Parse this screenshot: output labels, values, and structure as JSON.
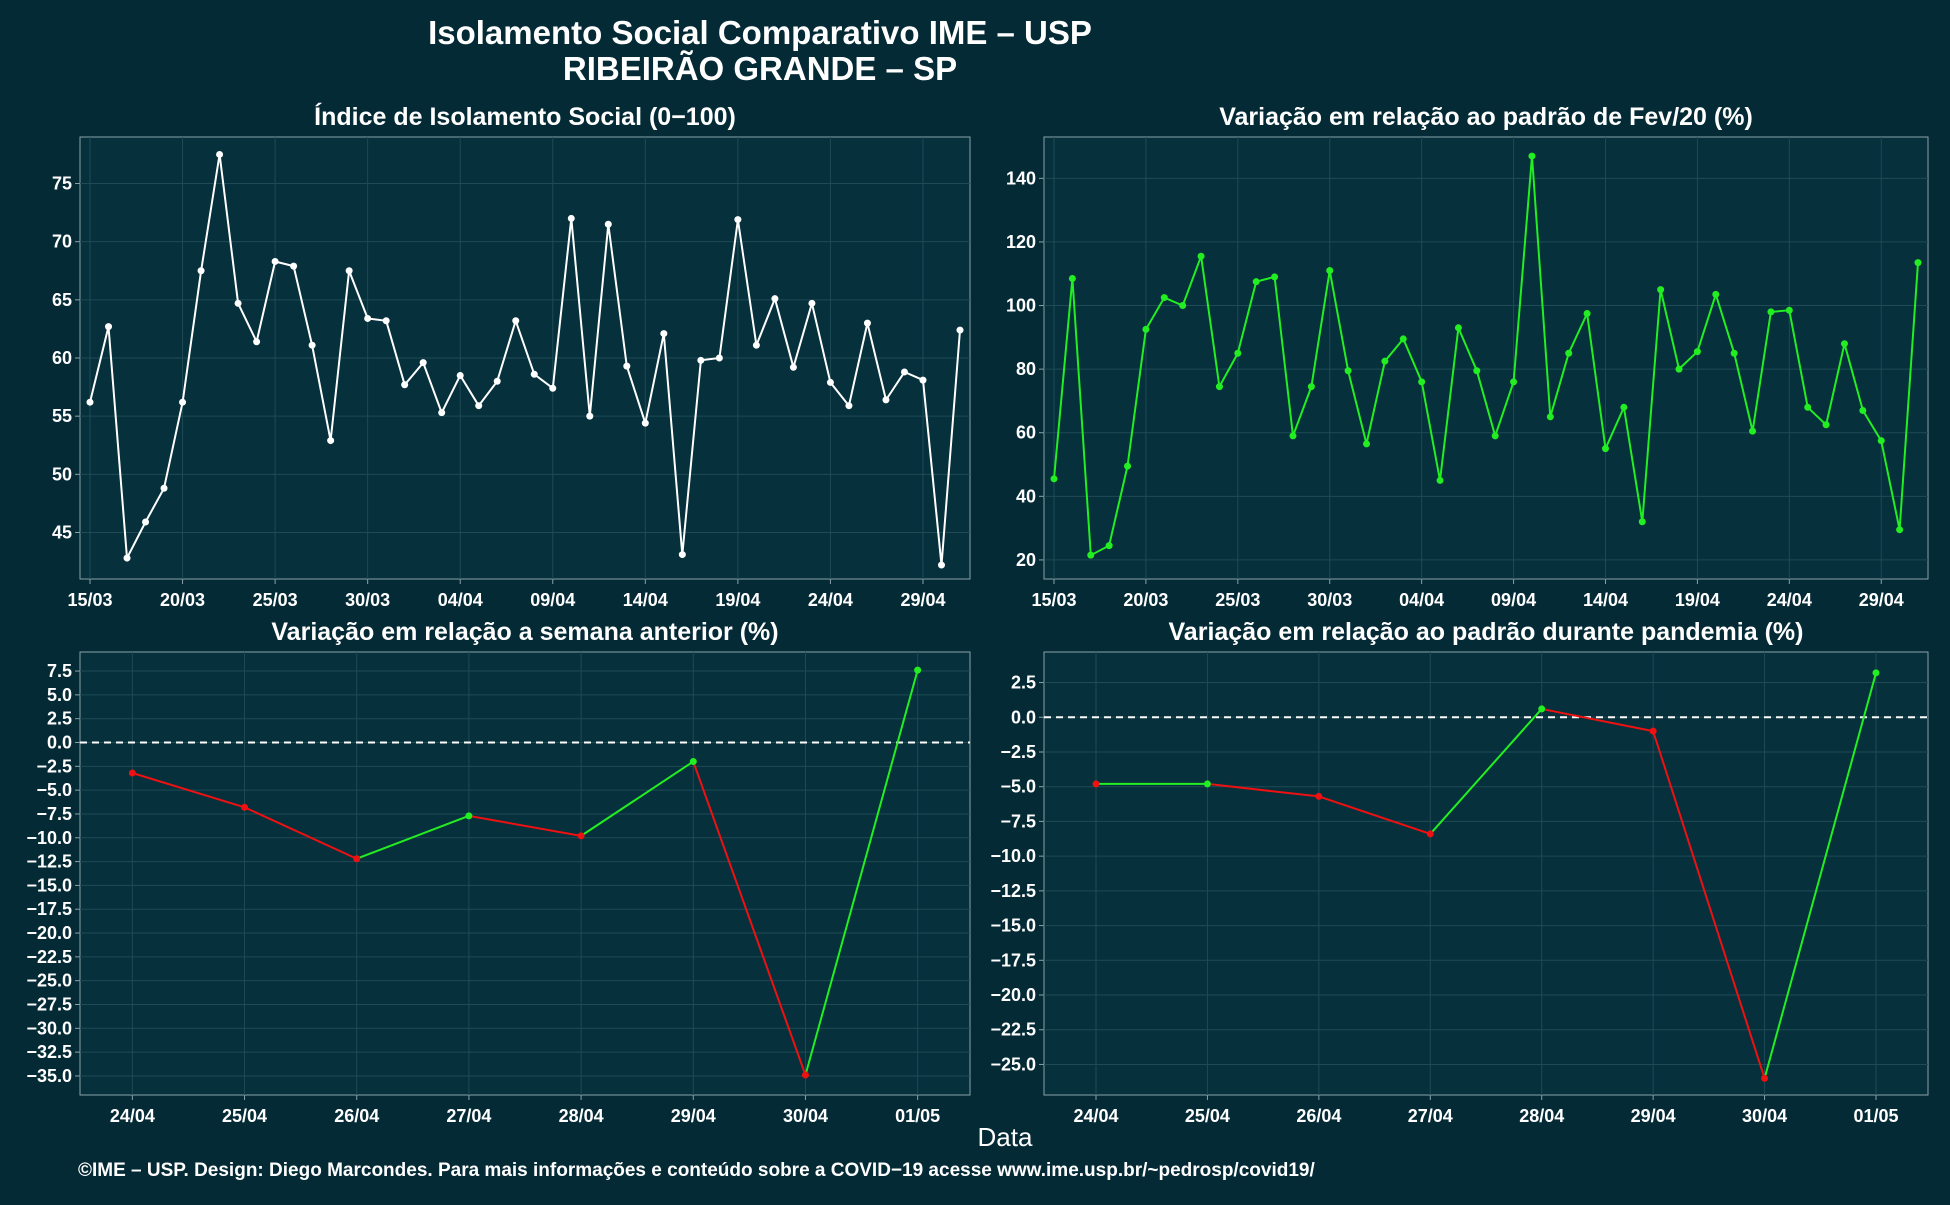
{
  "title_line1": "Isolamento Social Comparativo IME – USP",
  "title_line2": "RIBEIRÃO GRANDE – SP",
  "xaxis_title": "Data",
  "footer": "©IME – USP. Design: Diego Marcondes. Para mais informações e conteúdo sobre a COVID−19 acesse www.ime.usp.br/~pedrosp/covid19/",
  "colors": {
    "background": "#042a36",
    "panel": "#05303c",
    "grid": "#1f4a56",
    "text": "#ffffff",
    "series_white": "#ffffff",
    "series_green": "#22ee22",
    "series_red": "#ee1111",
    "zero_line": "#ffffff"
  },
  "chart_data": [
    {
      "type": "line",
      "title": "Índice de Isolamento Social (0−100)",
      "x_start": "15/03",
      "x_end": "01/05",
      "xtick_labels": [
        "15/03",
        "20/03",
        "25/03",
        "30/03",
        "04/04",
        "09/04",
        "14/04",
        "19/04",
        "24/04",
        "29/04"
      ],
      "yticks": [
        45,
        50,
        55,
        60,
        65,
        70,
        75
      ],
      "ylim": [
        41,
        79
      ],
      "grid": true,
      "series": [
        {
          "color": "#ffffff",
          "values": [
            56.2,
            62.7,
            42.8,
            45.9,
            48.8,
            56.2,
            67.5,
            77.5,
            64.7,
            61.4,
            68.3,
            67.9,
            61.1,
            52.9,
            67.5,
            63.4,
            63.2,
            57.7,
            59.6,
            55.3,
            58.5,
            55.9,
            58.0,
            63.2,
            58.6,
            57.4,
            72.0,
            55.0,
            71.5,
            59.3,
            54.4,
            62.1,
            43.1,
            59.8,
            60.0,
            71.9,
            61.1,
            65.1,
            59.2,
            64.7,
            57.9,
            55.9,
            63.0,
            56.4,
            58.8,
            58.1,
            42.2,
            62.4
          ]
        }
      ]
    },
    {
      "type": "line",
      "title": "Variação em relação ao padrão de Fev/20 (%)",
      "x_start": "15/03",
      "x_end": "01/05",
      "xtick_labels": [
        "15/03",
        "20/03",
        "25/03",
        "30/03",
        "04/04",
        "09/04",
        "14/04",
        "19/04",
        "24/04",
        "29/04"
      ],
      "yticks": [
        20,
        40,
        60,
        80,
        100,
        120,
        140
      ],
      "ylim": [
        14,
        153
      ],
      "grid": true,
      "series": [
        {
          "color": "#22ee22",
          "values": [
            45.5,
            108.5,
            21.5,
            24.5,
            49.5,
            92.5,
            102.5,
            100.0,
            115.5,
            74.5,
            85.0,
            107.5,
            109.0,
            59.0,
            74.5,
            111.0,
            79.5,
            56.5,
            82.5,
            89.5,
            76.0,
            45.0,
            93.0,
            79.5,
            59.0,
            76.0,
            147.0,
            65.0,
            85.0,
            97.5,
            55.0,
            68.0,
            32.0,
            105.0,
            80.0,
            85.5,
            103.5,
            85.0,
            60.5,
            98.0,
            98.5,
            68.0,
            62.5,
            88.0,
            67.0,
            57.5,
            29.5,
            113.5
          ]
        }
      ]
    },
    {
      "type": "line",
      "title": "Variação em relação a semana anterior (%)",
      "categories": [
        "24/04",
        "25/04",
        "26/04",
        "27/04",
        "28/04",
        "29/04",
        "30/04",
        "01/05"
      ],
      "values": [
        -3.2,
        -6.8,
        -12.2,
        -7.7,
        -9.8,
        -2.0,
        -34.9,
        7.6
      ],
      "yticks": [
        7.5,
        5.0,
        2.5,
        0.0,
        -2.5,
        -5.0,
        -7.5,
        -10.0,
        -12.5,
        -15.0,
        -17.5,
        -20.0,
        -22.5,
        -25.0,
        -27.5,
        -30.0,
        -32.5,
        -35.0
      ],
      "ylim": [
        -37,
        9.5
      ],
      "reference_line": 0,
      "up_color": "#22ee22",
      "down_color": "#ee1111",
      "grid": true
    },
    {
      "type": "line",
      "title": "Variação em relação ao padrão durante pandemia (%)",
      "categories": [
        "24/04",
        "25/04",
        "26/04",
        "27/04",
        "28/04",
        "29/04",
        "30/04",
        "01/05"
      ],
      "values": [
        -4.8,
        -4.8,
        -5.7,
        -8.4,
        0.6,
        -1.0,
        -26.0,
        3.2
      ],
      "yticks": [
        2.5,
        0.0,
        -2.5,
        -5.0,
        -7.5,
        -10.0,
        -12.5,
        -15.0,
        -17.5,
        -20.0,
        -22.5,
        -25.0
      ],
      "ylim": [
        -27.2,
        4.7
      ],
      "reference_line": 0,
      "up_color": "#22ee22",
      "down_color": "#ee1111",
      "grid": true
    }
  ]
}
